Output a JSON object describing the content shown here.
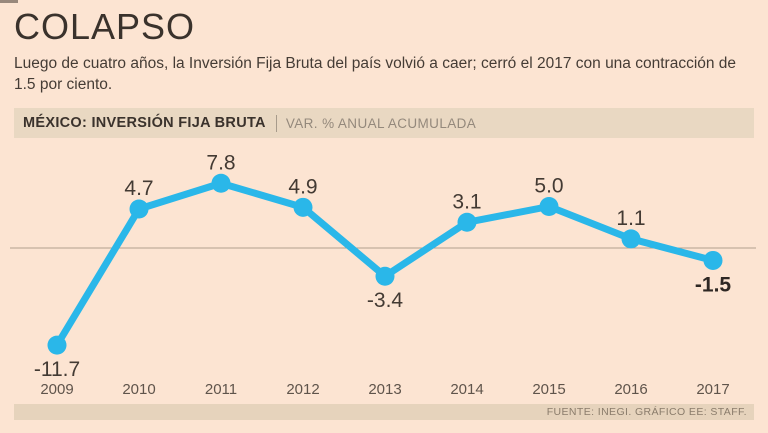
{
  "page": {
    "headline": "COLAPSO",
    "dek": "Luego de cuatro años, la Inversión Fija Bruta del país volvió a caer; cerró el 2017 con una contracción de 1.5 por ciento.",
    "source": "FUENTE: INEGI. GRÁFICO EE: STAFF."
  },
  "chart_header": {
    "title": "MÉXICO: INVERSIÓN FIJA BRUTA",
    "units": "VAR. % ANUAL ACUMULADA"
  },
  "colors": {
    "background": "#fce4d2",
    "band": "#e9d8c2",
    "source_band": "#e6d3bc",
    "line": "#2ab7e9",
    "value_label": "#433a33",
    "value_label_bold": "#2e2723",
    "year_label": "#5f544b",
    "zero_line": "#b2a18e"
  },
  "chart_data": {
    "type": "line",
    "title": "MÉXICO: INVERSIÓN FIJA BRUTA",
    "ylabel": "VAR. % ANUAL ACUMULADA",
    "categories": [
      "2009",
      "2010",
      "2011",
      "2012",
      "2013",
      "2014",
      "2015",
      "2016",
      "2017"
    ],
    "values": [
      -11.7,
      4.7,
      7.8,
      4.9,
      -3.4,
      3.1,
      5.0,
      1.1,
      -1.5
    ],
    "point_labels": [
      "-11.7",
      "4.7",
      "7.8",
      "4.9",
      "-3.4",
      "3.1",
      "5.0",
      "1.1",
      "-1.5"
    ],
    "ylim": [
      -14,
      10
    ],
    "grid": false,
    "zero_line": true,
    "legend": "none",
    "last_point_label_bold": true
  }
}
